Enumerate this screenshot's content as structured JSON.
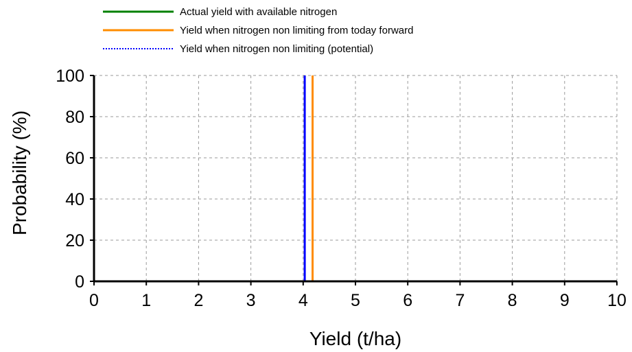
{
  "chart_data": {
    "type": "line",
    "xlabel": "Yield (t/ha)",
    "ylabel": "Probability (%)",
    "xlim": [
      0,
      10
    ],
    "ylim": [
      0,
      100
    ],
    "x_ticks": [
      "0",
      "1",
      "2",
      "3",
      "4",
      "5",
      "6",
      "7",
      "8",
      "9",
      "10"
    ],
    "y_ticks": [
      "0",
      "20",
      "40",
      "60",
      "80",
      "100"
    ],
    "grid": true,
    "legend_position": "top-left",
    "series": [
      {
        "name": "Actual yield with available nitrogen",
        "color": "#008000",
        "style": "solid",
        "x": [],
        "y": []
      },
      {
        "name": "Yield when nitrogen non limiting from today forward",
        "color": "#ff8c00",
        "style": "solid",
        "x": [
          4.18,
          4.18
        ],
        "y": [
          0,
          100
        ]
      },
      {
        "name": "Yield when nitrogen non limiting (potential)",
        "color": "#0000ff",
        "style": "dotted",
        "x": [
          4.03,
          4.03
        ],
        "y": [
          0,
          100
        ]
      }
    ]
  }
}
